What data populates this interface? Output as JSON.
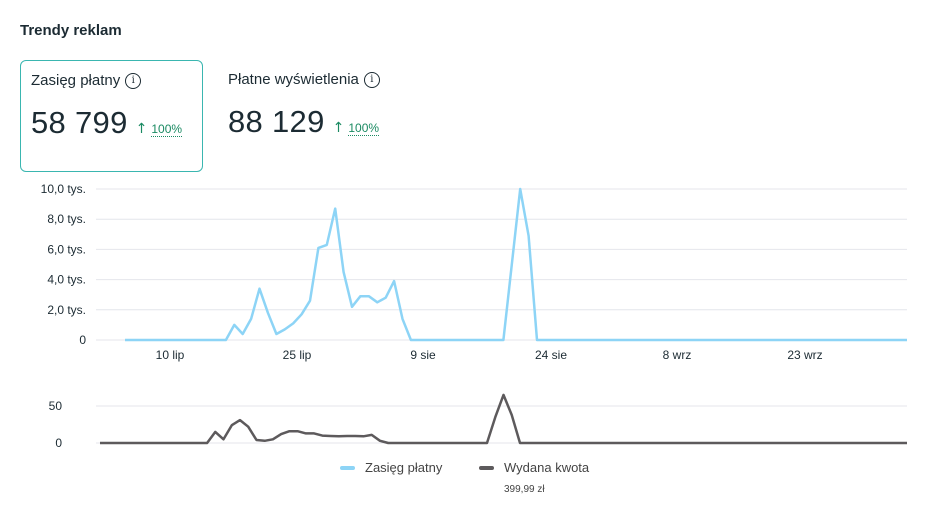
{
  "panel": {
    "title": "Trendy reklam"
  },
  "metrics": [
    {
      "label": "Zasięg płatny",
      "value": "58 799",
      "delta": "100%",
      "selected": true
    },
    {
      "label": "Płatne wyświetlenia",
      "value": "88 129",
      "delta": "100%",
      "selected": false
    }
  ],
  "colors": {
    "reach": "#8dd4f6",
    "spend": "#5d5a5c",
    "grid": "#e4e6eb",
    "accent_border": "#3ab6b0",
    "up": "#1a8a62"
  },
  "icons": {
    "info": "info-icon",
    "trend": "arrow-up-icon"
  },
  "chart_data": [
    {
      "type": "line",
      "series": [
        {
          "name": "Zasięg płatny",
          "values": [
            0,
            0,
            0,
            0,
            0,
            0,
            0,
            0,
            0,
            0,
            0,
            0,
            0,
            1000,
            400,
            1400,
            3400,
            1800,
            400,
            700,
            1100,
            1700,
            2600,
            6100,
            6300,
            8700,
            4500,
            2200,
            2900,
            2900,
            2500,
            2800,
            3900,
            1400,
            0,
            0,
            0,
            0,
            0,
            0,
            0,
            0,
            0,
            0,
            0,
            0,
            5000,
            10000,
            6900,
            0,
            0,
            0,
            0,
            0,
            0,
            0,
            0,
            0,
            0,
            0,
            0,
            0,
            0,
            0,
            0,
            0,
            0,
            0,
            0,
            0,
            0,
            0,
            0,
            0,
            0,
            0,
            0,
            0,
            0,
            0,
            0,
            0,
            0,
            0,
            0,
            0,
            0,
            0,
            0,
            0,
            0,
            0,
            0,
            0
          ]
        }
      ],
      "x_ticks": [
        "10 lip",
        "25 lip",
        "9 sie",
        "24 sie",
        "8 wrz",
        "23 wrz"
      ],
      "y_ticks": [
        "0",
        "2,0 tys.",
        "4,0 tys.",
        "6,0 tys.",
        "8,0 tys.",
        "10,0 tys."
      ],
      "ylim": [
        0,
        10000
      ],
      "grid": true
    },
    {
      "type": "line",
      "series": [
        {
          "name": "Wydana kwota",
          "values": [
            0,
            0,
            0,
            0,
            0,
            0,
            0,
            0,
            0,
            0,
            0,
            0,
            0,
            0,
            15,
            5,
            24,
            31,
            22,
            4,
            3,
            5,
            12,
            16,
            16,
            13,
            13,
            10,
            9.5,
            9,
            9.5,
            9.5,
            9,
            11,
            3,
            0,
            0,
            0,
            0,
            0,
            0,
            0,
            0,
            0,
            0,
            0,
            0,
            0,
            35,
            65,
            38,
            0,
            0,
            0,
            0,
            0,
            0,
            0,
            0,
            0,
            0,
            0,
            0,
            0,
            0,
            0,
            0,
            0,
            0,
            0,
            0,
            0,
            0,
            0,
            0,
            0,
            0,
            0,
            0,
            0,
            0,
            0,
            0,
            0,
            0,
            0,
            0,
            0,
            0,
            0,
            0,
            0,
            0,
            0,
            0,
            0,
            0,
            0,
            0
          ]
        }
      ],
      "y_ticks": [
        "0",
        "50"
      ],
      "ylim": [
        0,
        100
      ],
      "grid": true
    }
  ],
  "legend": [
    {
      "label": "Zasięg płatny"
    },
    {
      "label": "Wydana kwota",
      "sublabel": "399,99 zł"
    }
  ]
}
